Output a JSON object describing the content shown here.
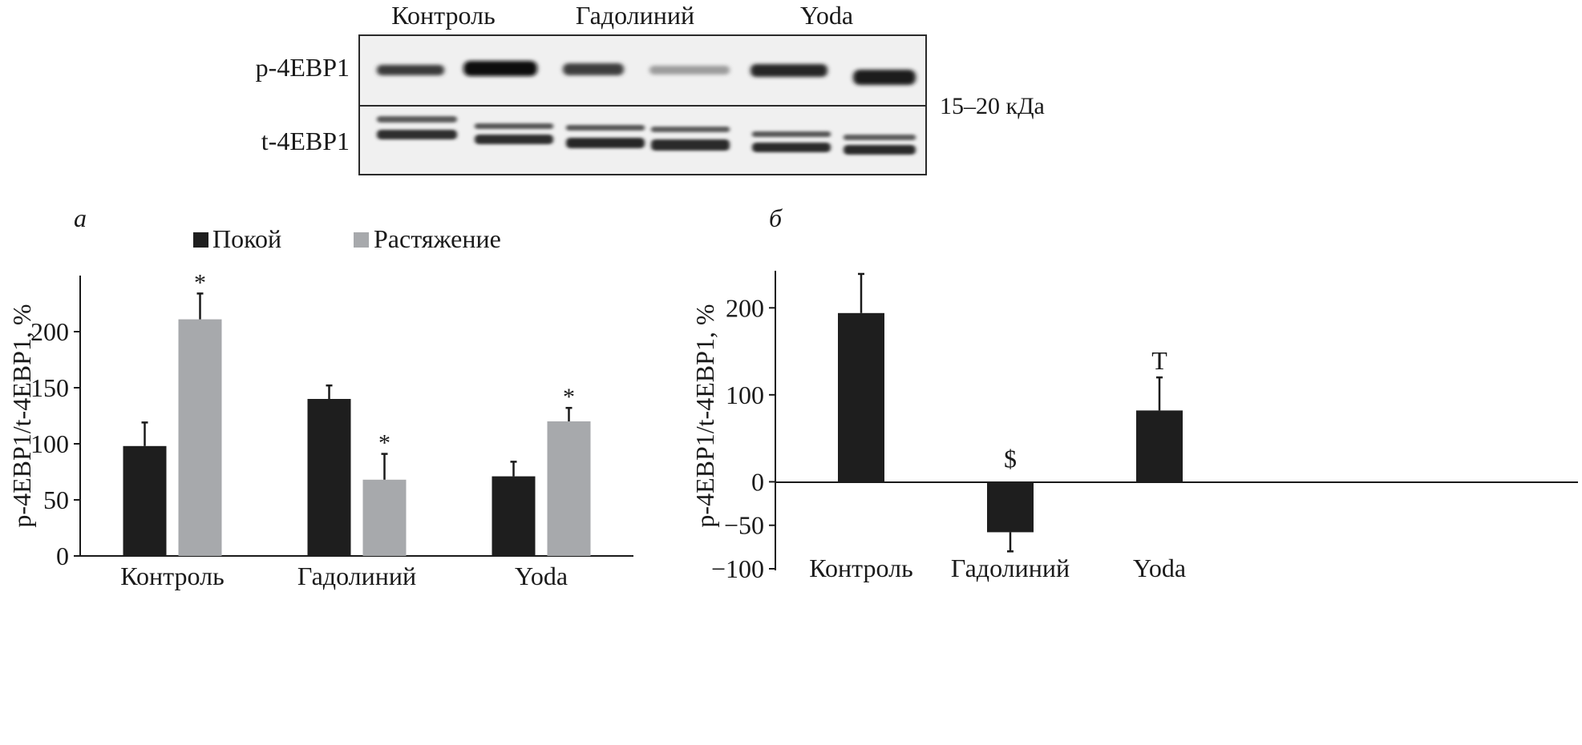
{
  "blot": {
    "lane_groups": [
      "Контроль",
      "Гадолиний",
      "Yoda"
    ],
    "rows": [
      "p-4EBP1",
      "t-4EBP1"
    ],
    "size_label": "15–20 кДа"
  },
  "colors": {
    "rest": "#1e1e1e",
    "stretch": "#a7a9ac",
    "axis": "#1a1a1a"
  },
  "chart_data": [
    {
      "panel_label": "а",
      "type": "bar",
      "categories": [
        "Контроль",
        "Гадолиний",
        "Yoda"
      ],
      "series": [
        {
          "name": "Покой",
          "values": [
            98,
            140,
            71
          ],
          "errors": [
            21,
            12,
            13
          ]
        },
        {
          "name": "Растяжение",
          "values": [
            211,
            68,
            120
          ],
          "errors": [
            23,
            23,
            12
          ]
        }
      ],
      "annotations": [
        {
          "category": "Контроль",
          "series": "Растяжение",
          "text": "*"
        },
        {
          "category": "Гадолиний",
          "series": "Растяжение",
          "text": "*"
        },
        {
          "category": "Yoda",
          "series": "Растяжение",
          "text": "*"
        }
      ],
      "ylabel": "p-4EBP1/t-4EBP1, %",
      "xlabel": "",
      "ylim": [
        0,
        250
      ],
      "yticks": [
        0,
        50,
        100,
        150,
        200
      ],
      "legend": "top-center",
      "grid": false
    },
    {
      "panel_label": "б",
      "type": "bar",
      "categories": [
        "Контроль",
        "Гадолиний",
        "Yoda"
      ],
      "series": [
        {
          "values": [
            194,
            -58,
            82
          ],
          "errors": [
            45,
            22,
            38
          ]
        }
      ],
      "annotations": [
        {
          "category": "Гадолиний",
          "text": "$"
        },
        {
          "category": "Yoda",
          "text": "T"
        }
      ],
      "ylabel": "p-4EBP1/t-4EBP1, %",
      "xlabel": "",
      "ylim": [
        -100,
        250
      ],
      "yticks": [
        -100,
        -50,
        0,
        100,
        200
      ],
      "grid": false
    }
  ]
}
